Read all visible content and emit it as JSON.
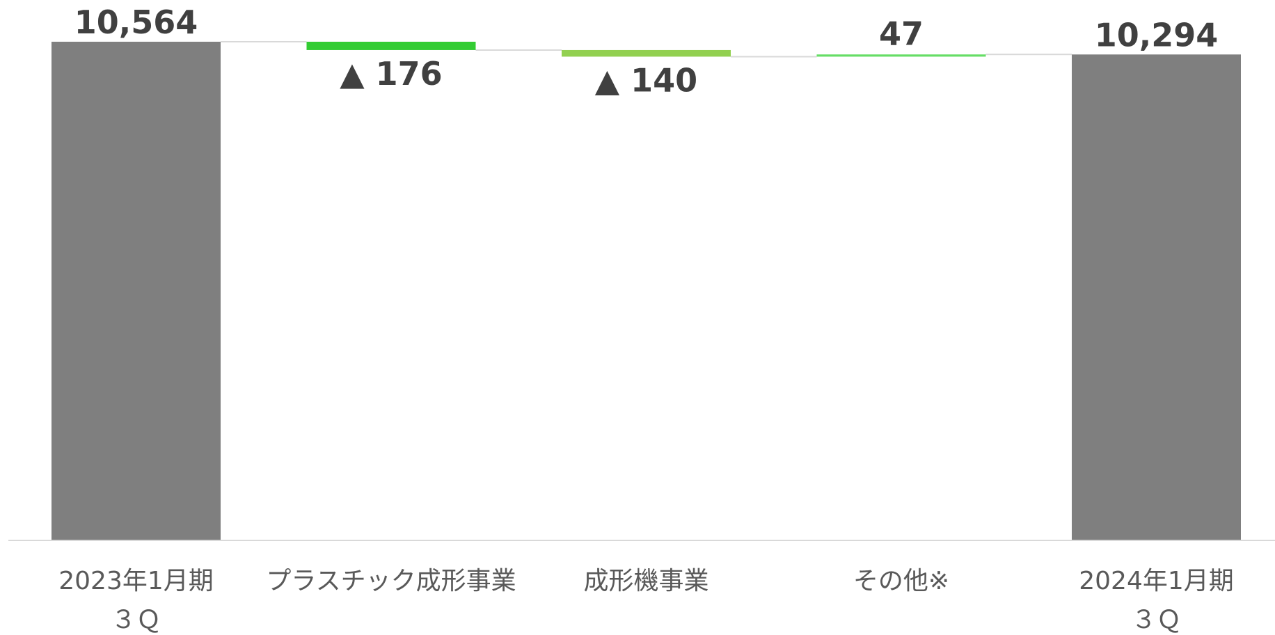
{
  "chart_data": {
    "type": "bar",
    "subtype": "waterfall",
    "categories": [
      [
        "2023年1月期",
        "３Ｑ"
      ],
      [
        "プラスチック成形事業"
      ],
      [
        "成形機事業"
      ],
      [
        "その他※"
      ],
      [
        "2024年1月期",
        "３Ｑ"
      ]
    ],
    "steps": [
      {
        "kind": "total",
        "value": 10564,
        "label": "10,564"
      },
      {
        "kind": "delta",
        "value": -176,
        "label": "▲ 176"
      },
      {
        "kind": "delta",
        "value": -140,
        "label": "▲ 140"
      },
      {
        "kind": "delta",
        "value": 47,
        "label": "47"
      },
      {
        "kind": "total",
        "value": 10294,
        "label": "10,294"
      }
    ],
    "ylim": [
      0,
      10564
    ],
    "grid": false,
    "legend": "none",
    "colors": {
      "total": "#7f7f7f",
      "delta": [
        "#33cc33",
        "#92d050",
        "#66dd66"
      ],
      "connector": "#d9d9d9",
      "axis": "#d9d9d9",
      "value_text": "#404040",
      "category_text": "#595959"
    }
  }
}
